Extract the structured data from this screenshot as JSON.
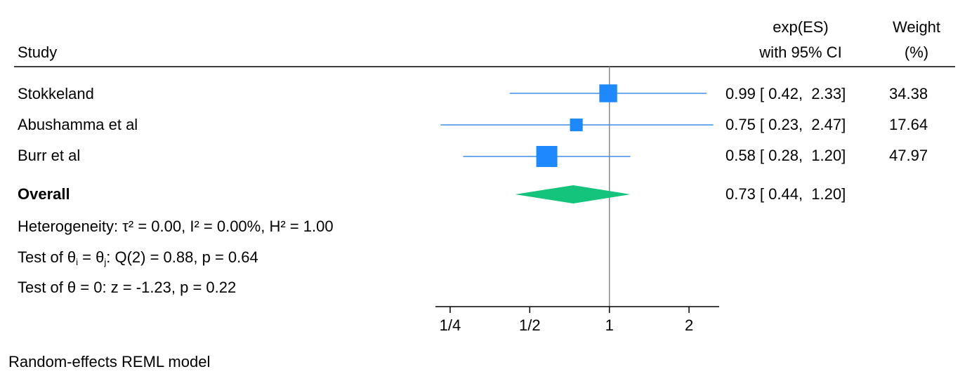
{
  "header": {
    "study": "Study",
    "effect_line1": "exp(ES)",
    "effect_line2": "with 95% CI",
    "weight_line1": "Weight",
    "weight_line2": "(%)"
  },
  "rows": [
    {
      "label": "Stokkeland",
      "ci_text": "0.99 [ 0.42,  2.33]",
      "weight_text": "34.38"
    },
    {
      "label": "Abushamma et al",
      "ci_text": "0.75 [ 0.23,  2.47]",
      "weight_text": "17.64"
    },
    {
      "label": "Burr et al",
      "ci_text": "0.58 [ 0.28,  1.20]",
      "weight_text": "47.97"
    }
  ],
  "overall": {
    "label": "Overall",
    "ci_text": "0.73 [ 0.44,  1.20]"
  },
  "heterogeneity": "Heterogeneity: τ² = 0.00, I² = 0.00%, H² = 1.00",
  "test_theta_pre": "Test of θ",
  "test_theta_i": "i",
  "test_theta_mid": " = θ",
  "test_theta_j": "j",
  "test_theta_post": ": Q(2) = 0.88, p = 0.64",
  "test_zero": "Test of θ = 0: z = -1.23, p = 0.22",
  "footnote": "Random-effects REML model",
  "chart_data": {
    "type": "scatter",
    "x_scale": "log",
    "xlim": [
      0.22,
      2.6
    ],
    "xticks": [
      0.25,
      0.5,
      1,
      2
    ],
    "xtick_labels": [
      "1/4",
      "1/2",
      "1",
      "2"
    ],
    "reference_line": 1,
    "studies": [
      {
        "name": "Stokkeland",
        "es": 0.99,
        "lo": 0.42,
        "hi": 2.33,
        "weight": 34.38
      },
      {
        "name": "Abushamma et al",
        "es": 0.75,
        "lo": 0.23,
        "hi": 2.47,
        "weight": 17.64
      },
      {
        "name": "Burr et al",
        "es": 0.58,
        "lo": 0.28,
        "hi": 1.2,
        "weight": 47.97
      }
    ],
    "overall": {
      "es": 0.73,
      "lo": 0.44,
      "hi": 1.2
    },
    "colors": {
      "study": "#1e88ff",
      "ci": "#3d8fe8",
      "overall": "#14c47d",
      "axis": "#000000",
      "reference": "#888888"
    }
  }
}
